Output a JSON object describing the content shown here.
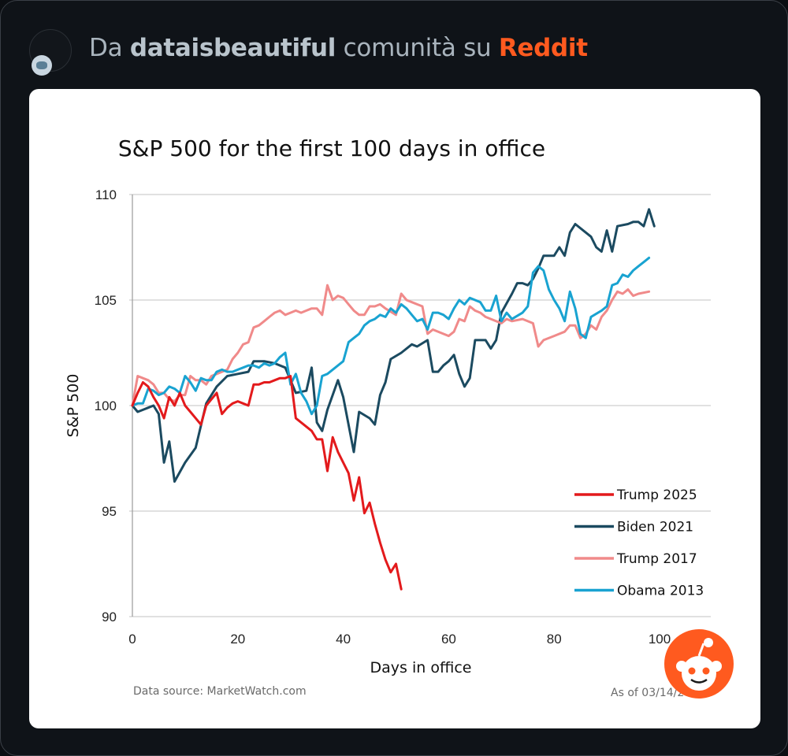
{
  "header": {
    "prefix": "Da",
    "community": "dataisbeautiful",
    "middle": "comunità su",
    "platform": "Reddit"
  },
  "colors": {
    "background": "#0f1318",
    "reddit_orange": "#ff5a1f",
    "trump2025": "#e31a1c",
    "biden2021": "#1b4a60",
    "trump2017": "#f08a8a",
    "obama2013": "#19a3d1"
  },
  "icons": {
    "avatar": "reddit-avatar-icon",
    "logo": "reddit-snoo-icon"
  },
  "chart_data": {
    "type": "line",
    "title": "S&P 500 for the first 100 days in office",
    "xlabel": "Days in office",
    "ylabel": "S&P 500",
    "xlim": [
      0,
      100
    ],
    "ylim": [
      90,
      110
    ],
    "xticks": [
      0,
      20,
      40,
      60,
      80,
      100
    ],
    "yticks": [
      90,
      95,
      100,
      105,
      110
    ],
    "grid": "horizontal",
    "legend_position": "bottom-right",
    "source": "Data source: MarketWatch.com",
    "as_of": "As of 03/14/2025",
    "series": [
      {
        "name": "Trump 2025",
        "color": "#e31a1c",
        "points": [
          [
            0,
            100.0
          ],
          [
            1,
            100.6
          ],
          [
            2,
            101.1
          ],
          [
            3,
            100.9
          ],
          [
            4,
            100.4
          ],
          [
            5,
            100.0
          ],
          [
            6,
            99.4
          ],
          [
            7,
            100.4
          ],
          [
            8,
            100.0
          ],
          [
            9,
            100.6
          ],
          [
            10,
            100.0
          ],
          [
            11,
            99.7
          ],
          [
            12,
            99.4
          ],
          [
            13,
            99.1
          ],
          [
            14,
            100.0
          ],
          [
            15,
            100.3
          ],
          [
            16,
            100.6
          ],
          [
            17,
            99.6
          ],
          [
            18,
            99.9
          ],
          [
            19,
            100.1
          ],
          [
            20,
            100.2
          ],
          [
            21,
            100.1
          ],
          [
            22,
            100.0
          ],
          [
            23,
            101.0
          ],
          [
            24,
            101.0
          ],
          [
            25,
            101.1
          ],
          [
            26,
            101.1
          ],
          [
            27,
            101.2
          ],
          [
            28,
            101.3
          ],
          [
            29,
            101.3
          ],
          [
            30,
            101.4
          ],
          [
            31,
            99.4
          ],
          [
            32,
            99.2
          ],
          [
            33,
            99.0
          ],
          [
            34,
            98.8
          ],
          [
            35,
            98.4
          ],
          [
            36,
            98.4
          ],
          [
            37,
            96.9
          ],
          [
            38,
            98.5
          ],
          [
            39,
            97.8
          ],
          [
            40,
            97.3
          ],
          [
            41,
            96.8
          ],
          [
            42,
            95.5
          ],
          [
            43,
            96.6
          ],
          [
            44,
            94.9
          ],
          [
            45,
            95.4
          ],
          [
            46,
            94.4
          ],
          [
            47,
            93.5
          ],
          [
            48,
            92.7
          ],
          [
            49,
            92.1
          ],
          [
            50,
            92.5
          ],
          [
            51,
            91.3
          ]
        ]
      },
      {
        "name": "Biden 2021",
        "color": "#1b4a60",
        "points": [
          [
            0,
            100.0
          ],
          [
            1,
            99.7
          ],
          [
            2,
            99.8
          ],
          [
            3,
            99.9
          ],
          [
            4,
            100.0
          ],
          [
            5,
            99.6
          ],
          [
            6,
            97.3
          ],
          [
            7,
            98.3
          ],
          [
            8,
            96.4
          ],
          [
            10,
            97.3
          ],
          [
            12,
            98.0
          ],
          [
            14,
            100.1
          ],
          [
            16,
            100.9
          ],
          [
            18,
            101.4
          ],
          [
            20,
            101.5
          ],
          [
            22,
            101.6
          ],
          [
            23,
            102.1
          ],
          [
            25,
            102.1
          ],
          [
            27,
            102.0
          ],
          [
            29,
            101.8
          ],
          [
            31,
            100.6
          ],
          [
            33,
            100.7
          ],
          [
            34,
            101.8
          ],
          [
            35,
            99.2
          ],
          [
            36,
            98.8
          ],
          [
            37,
            99.8
          ],
          [
            39,
            101.2
          ],
          [
            40,
            100.4
          ],
          [
            42,
            97.8
          ],
          [
            43,
            99.7
          ],
          [
            45,
            99.4
          ],
          [
            46,
            99.1
          ],
          [
            47,
            100.5
          ],
          [
            48,
            101.1
          ],
          [
            49,
            102.2
          ],
          [
            51,
            102.5
          ],
          [
            53,
            102.9
          ],
          [
            54,
            102.8
          ],
          [
            56,
            103.1
          ],
          [
            57,
            101.6
          ],
          [
            58,
            101.6
          ],
          [
            59,
            101.9
          ],
          [
            60,
            102.1
          ],
          [
            61,
            102.4
          ],
          [
            62,
            101.5
          ],
          [
            63,
            100.9
          ],
          [
            64,
            101.3
          ],
          [
            65,
            103.1
          ],
          [
            67,
            103.1
          ],
          [
            68,
            102.7
          ],
          [
            69,
            103.1
          ],
          [
            70,
            104.4
          ],
          [
            72,
            105.3
          ],
          [
            73,
            105.8
          ],
          [
            74,
            105.8
          ],
          [
            75,
            105.7
          ],
          [
            76,
            106.0
          ],
          [
            77,
            106.5
          ],
          [
            78,
            107.1
          ],
          [
            80,
            107.1
          ],
          [
            81,
            107.5
          ],
          [
            82,
            107.1
          ],
          [
            83,
            108.2
          ],
          [
            84,
            108.6
          ],
          [
            86,
            108.2
          ],
          [
            87,
            108.0
          ],
          [
            88,
            107.5
          ],
          [
            89,
            107.3
          ],
          [
            90,
            108.3
          ],
          [
            91,
            107.3
          ],
          [
            92,
            108.5
          ],
          [
            94,
            108.6
          ],
          [
            95,
            108.7
          ],
          [
            96,
            108.7
          ],
          [
            97,
            108.5
          ],
          [
            98,
            109.3
          ],
          [
            99,
            108.5
          ]
        ]
      },
      {
        "name": "Trump 2017",
        "color": "#f08a8a",
        "points": [
          [
            0,
            100.0
          ],
          [
            1,
            101.4
          ],
          [
            2,
            101.3
          ],
          [
            3,
            101.2
          ],
          [
            4,
            101.0
          ],
          [
            5,
            100.6
          ],
          [
            6,
            100.6
          ],
          [
            7,
            100.3
          ],
          [
            8,
            100.2
          ],
          [
            9,
            100.5
          ],
          [
            10,
            100.5
          ],
          [
            11,
            101.4
          ],
          [
            12,
            101.2
          ],
          [
            13,
            101.2
          ],
          [
            14,
            101.0
          ],
          [
            15,
            101.4
          ],
          [
            16,
            101.5
          ],
          [
            17,
            101.6
          ],
          [
            18,
            101.7
          ],
          [
            19,
            102.2
          ],
          [
            20,
            102.5
          ],
          [
            21,
            102.9
          ],
          [
            22,
            103.0
          ],
          [
            23,
            103.7
          ],
          [
            24,
            103.8
          ],
          [
            25,
            104.0
          ],
          [
            26,
            104.2
          ],
          [
            27,
            104.4
          ],
          [
            28,
            104.5
          ],
          [
            29,
            104.3
          ],
          [
            30,
            104.4
          ],
          [
            31,
            104.5
          ],
          [
            32,
            104.4
          ],
          [
            33,
            104.5
          ],
          [
            34,
            104.6
          ],
          [
            35,
            104.6
          ],
          [
            36,
            104.3
          ],
          [
            37,
            105.7
          ],
          [
            38,
            105.0
          ],
          [
            39,
            105.2
          ],
          [
            40,
            105.1
          ],
          [
            41,
            104.8
          ],
          [
            42,
            104.5
          ],
          [
            43,
            104.3
          ],
          [
            44,
            104.3
          ],
          [
            45,
            104.7
          ],
          [
            46,
            104.7
          ],
          [
            47,
            104.8
          ],
          [
            48,
            104.6
          ],
          [
            50,
            104.3
          ],
          [
            51,
            105.3
          ],
          [
            52,
            105.0
          ],
          [
            53,
            104.9
          ],
          [
            54,
            104.8
          ],
          [
            55,
            104.7
          ],
          [
            56,
            103.4
          ],
          [
            57,
            103.6
          ],
          [
            60,
            103.3
          ],
          [
            61,
            103.5
          ],
          [
            62,
            104.1
          ],
          [
            63,
            104.0
          ],
          [
            64,
            104.7
          ],
          [
            65,
            104.5
          ],
          [
            66,
            104.4
          ],
          [
            67,
            104.2
          ],
          [
            68,
            104.1
          ],
          [
            70,
            103.9
          ],
          [
            71,
            104.1
          ],
          [
            72,
            104.0
          ],
          [
            74,
            104.1
          ],
          [
            76,
            103.9
          ],
          [
            77,
            102.8
          ],
          [
            78,
            103.1
          ],
          [
            80,
            103.3
          ],
          [
            82,
            103.5
          ],
          [
            83,
            103.8
          ],
          [
            84,
            103.8
          ],
          [
            85,
            103.2
          ],
          [
            86,
            103.4
          ],
          [
            87,
            103.8
          ],
          [
            88,
            103.6
          ],
          [
            89,
            104.2
          ],
          [
            90,
            104.5
          ],
          [
            91,
            105.0
          ],
          [
            92,
            105.4
          ],
          [
            93,
            105.3
          ],
          [
            94,
            105.5
          ],
          [
            95,
            105.2
          ],
          [
            96,
            105.3
          ],
          [
            98,
            105.4
          ]
        ]
      },
      {
        "name": "Obama 2013",
        "color": "#19a3d1",
        "points": [
          [
            0,
            100.0
          ],
          [
            1,
            100.1
          ],
          [
            2,
            100.1
          ],
          [
            3,
            100.8
          ],
          [
            4,
            100.7
          ],
          [
            5,
            100.5
          ],
          [
            6,
            100.6
          ],
          [
            7,
            100.9
          ],
          [
            8,
            100.8
          ],
          [
            9,
            100.6
          ],
          [
            10,
            101.4
          ],
          [
            11,
            101.1
          ],
          [
            12,
            100.7
          ],
          [
            13,
            101.3
          ],
          [
            14,
            101.2
          ],
          [
            15,
            101.2
          ],
          [
            16,
            101.6
          ],
          [
            17,
            101.7
          ],
          [
            18,
            101.6
          ],
          [
            19,
            101.6
          ],
          [
            20,
            101.7
          ],
          [
            21,
            101.8
          ],
          [
            22,
            101.9
          ],
          [
            23,
            101.9
          ],
          [
            24,
            101.8
          ],
          [
            25,
            102.0
          ],
          [
            26,
            101.9
          ],
          [
            27,
            102.0
          ],
          [
            28,
            102.3
          ],
          [
            29,
            102.5
          ],
          [
            30,
            101.0
          ],
          [
            31,
            101.5
          ],
          [
            32,
            100.6
          ],
          [
            33,
            100.2
          ],
          [
            34,
            99.6
          ],
          [
            35,
            100.0
          ],
          [
            36,
            101.4
          ],
          [
            37,
            101.5
          ],
          [
            38,
            101.7
          ],
          [
            39,
            101.9
          ],
          [
            40,
            102.1
          ],
          [
            41,
            103.0
          ],
          [
            42,
            103.2
          ],
          [
            43,
            103.4
          ],
          [
            44,
            103.8
          ],
          [
            45,
            104.0
          ],
          [
            46,
            104.1
          ],
          [
            47,
            104.3
          ],
          [
            48,
            104.2
          ],
          [
            49,
            104.6
          ],
          [
            50,
            104.4
          ],
          [
            51,
            104.8
          ],
          [
            52,
            104.6
          ],
          [
            53,
            104.3
          ],
          [
            54,
            104.0
          ],
          [
            55,
            104.1
          ],
          [
            56,
            103.6
          ],
          [
            57,
            104.4
          ],
          [
            58,
            104.4
          ],
          [
            59,
            104.3
          ],
          [
            60,
            104.1
          ],
          [
            61,
            104.6
          ],
          [
            62,
            105.0
          ],
          [
            63,
            104.8
          ],
          [
            64,
            105.1
          ],
          [
            66,
            104.9
          ],
          [
            67,
            104.5
          ],
          [
            68,
            104.5
          ],
          [
            69,
            105.2
          ],
          [
            70,
            104.0
          ],
          [
            71,
            104.4
          ],
          [
            72,
            104.1
          ],
          [
            74,
            104.4
          ],
          [
            75,
            104.7
          ],
          [
            76,
            106.3
          ],
          [
            77,
            106.6
          ],
          [
            78,
            106.4
          ],
          [
            79,
            105.5
          ],
          [
            80,
            105.0
          ],
          [
            81,
            104.6
          ],
          [
            82,
            104.0
          ],
          [
            83,
            105.4
          ],
          [
            84,
            104.6
          ],
          [
            85,
            103.4
          ],
          [
            86,
            103.2
          ],
          [
            87,
            104.2
          ],
          [
            89,
            104.5
          ],
          [
            90,
            104.7
          ],
          [
            91,
            105.7
          ],
          [
            92,
            105.8
          ],
          [
            93,
            106.2
          ],
          [
            94,
            106.1
          ],
          [
            95,
            106.4
          ],
          [
            96,
            106.6
          ],
          [
            97,
            106.8
          ],
          [
            98,
            107.0
          ]
        ]
      }
    ]
  }
}
